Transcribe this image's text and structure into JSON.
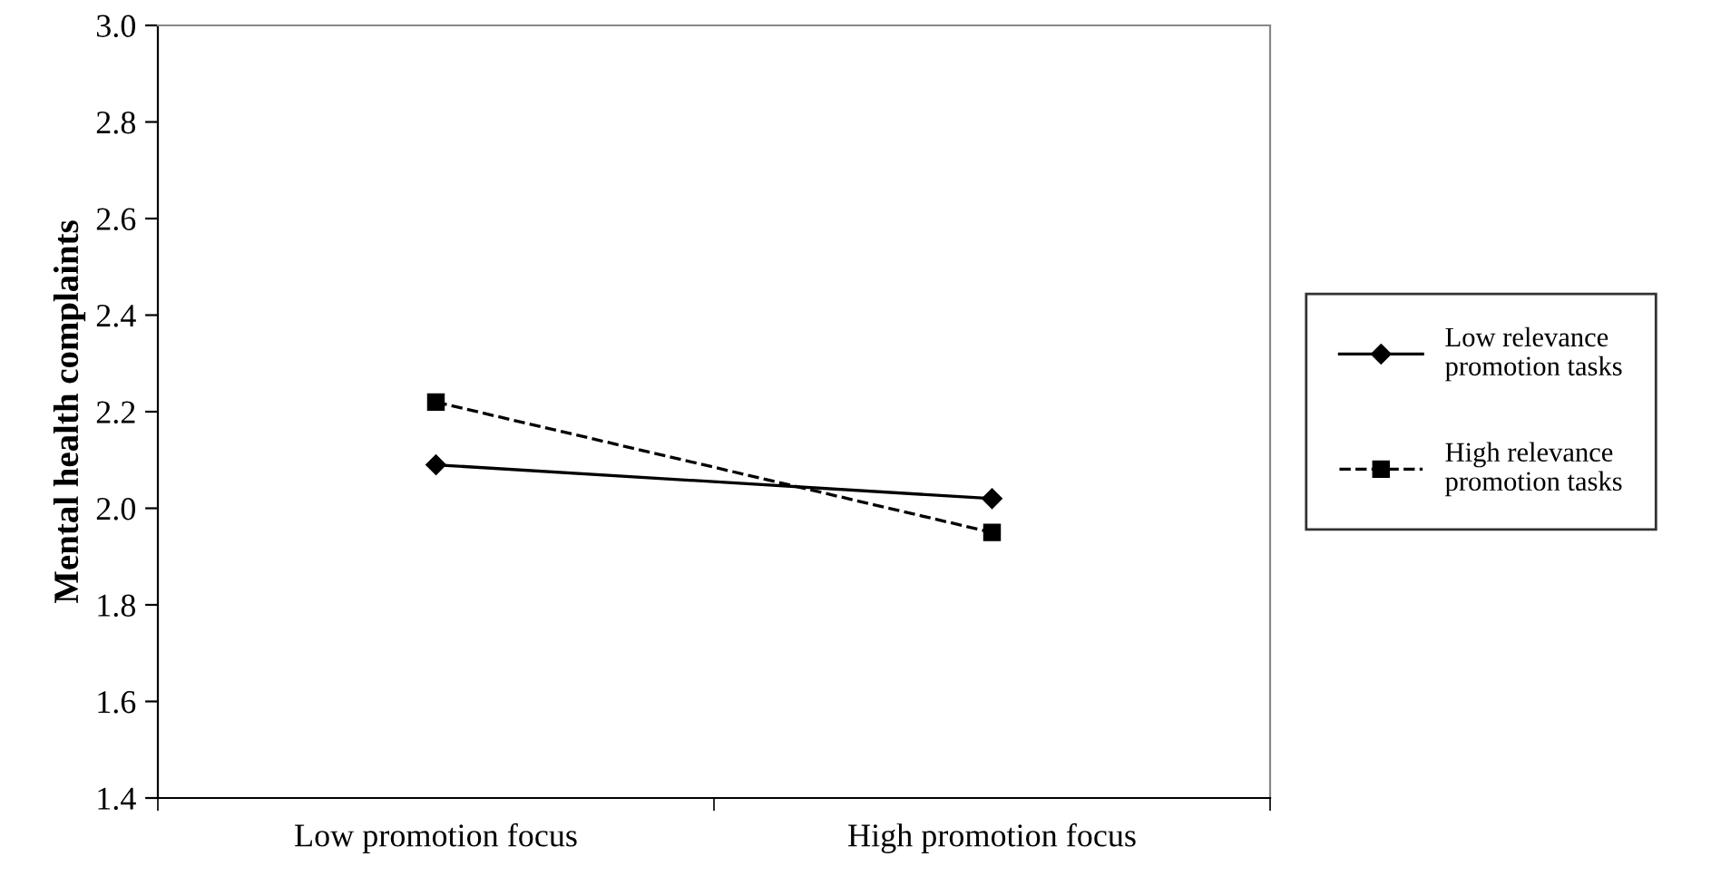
{
  "chart_data": {
    "type": "line",
    "ylabel": "Mental health complaints",
    "categories": [
      "Low promotion focus",
      "High promotion focus"
    ],
    "series": [
      {
        "name": "Low relevance\npromotion tasks",
        "color": "#000000",
        "values": [
          2.09,
          2.02
        ],
        "marker": "diamond",
        "line_style": "solid"
      },
      {
        "name": "High relevance\npromotion tasks",
        "color": "#000000",
        "values": [
          2.22,
          1.95
        ],
        "marker": "square",
        "line_style": "dashed"
      }
    ],
    "ylim": [
      1.4,
      3.0
    ],
    "yticks": [
      {
        "value": 1.4,
        "label": "1.4"
      },
      {
        "value": 1.6,
        "label": "1.6"
      },
      {
        "value": 1.8,
        "label": "1.8"
      },
      {
        "value": 2.0,
        "label": "2.0"
      },
      {
        "value": 2.2,
        "label": "2.2"
      },
      {
        "value": 2.4,
        "label": "2.4"
      },
      {
        "value": 2.6,
        "label": "2.6"
      },
      {
        "value": 2.8,
        "label": "2.8"
      },
      {
        "value": 3.0,
        "label": "3.0"
      }
    ],
    "grid": false,
    "legend": "right"
  }
}
